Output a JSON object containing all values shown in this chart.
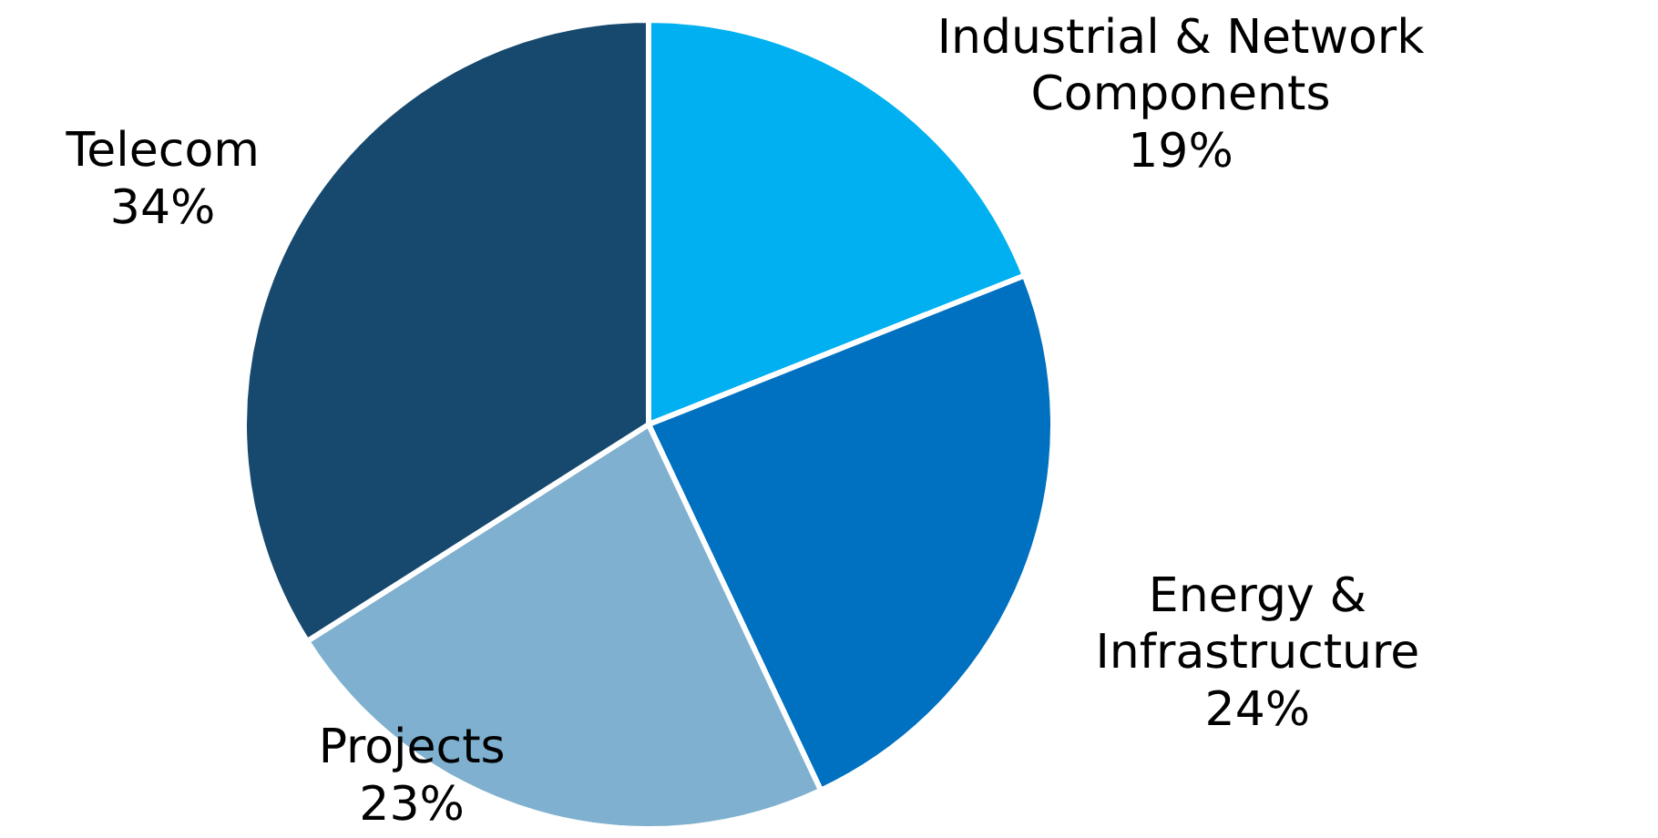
{
  "chart_data": {
    "type": "pie",
    "categories": [
      "Industrial & Network Components",
      "Energy & Infrastructure",
      "Projects",
      "Telecom"
    ],
    "values": [
      19,
      24,
      23,
      34
    ],
    "value_labels": [
      "19%",
      "24%",
      "23%",
      "34%"
    ],
    "colors": [
      "#00b0f0",
      "#0070c0",
      "#7fb0cf",
      "#17496e"
    ]
  }
}
